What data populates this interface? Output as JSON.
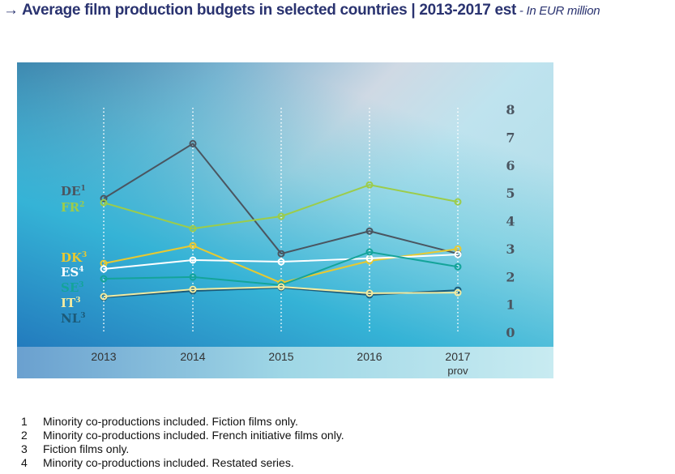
{
  "title": {
    "main": "→ Average film production budgets in selected countries | 2013-2017 est",
    "sub": " - In EUR million"
  },
  "chart_data": {
    "type": "line",
    "title": "Average film production budgets in selected countries | 2013-2017 est",
    "ylabel": "In EUR million",
    "categories": [
      "2013",
      "2014",
      "2015",
      "2016",
      "2017"
    ],
    "category_sublabels": [
      "",
      "",
      "",
      "",
      "prov"
    ],
    "ylim": [
      0,
      8
    ],
    "yticks": [
      0,
      1,
      2,
      3,
      4,
      5,
      6,
      7,
      8
    ],
    "grid": "vertical dotted",
    "legend": "left",
    "series": [
      {
        "name": "DE",
        "note": "1",
        "color": "#4a5560",
        "values": [
          4.8,
          6.77,
          2.82,
          3.63,
          2.82
        ]
      },
      {
        "name": "FR",
        "note": "2",
        "color": "#9ccc4a",
        "values": [
          4.65,
          3.72,
          4.16,
          5.29,
          4.68
        ]
      },
      {
        "name": "DK",
        "note": "3",
        "color": "#e8c930",
        "values": [
          2.47,
          3.11,
          1.77,
          2.56,
          2.99
        ]
      },
      {
        "name": "ES",
        "note": "4",
        "color": "#ffffff",
        "values": [
          2.27,
          2.59,
          2.53,
          2.65,
          2.79
        ]
      },
      {
        "name": "SE",
        "note": "3",
        "color": "#14a49a",
        "values": [
          1.92,
          1.98,
          1.69,
          2.88,
          2.35
        ]
      },
      {
        "name": "NL",
        "note": "3",
        "color": "#1c5a78",
        "values": [
          1.25,
          1.48,
          1.6,
          1.34,
          1.51
        ]
      },
      {
        "name": "IT",
        "note": "3",
        "color": "#f3eba0",
        "values": [
          1.28,
          1.54,
          1.63,
          1.4,
          1.42
        ]
      }
    ],
    "legend_order": [
      "DE",
      "FR",
      "DK",
      "ES",
      "SE",
      "IT",
      "NL"
    ]
  },
  "notes": [
    {
      "n": "1",
      "text": "Minority co-productions included. Fiction films only."
    },
    {
      "n": "2",
      "text": "Minority co-productions included. French initiative films only."
    },
    {
      "n": "3",
      "text": "Fiction films only."
    },
    {
      "n": "4",
      "text": "Minority co-productions included. Restated series."
    }
  ]
}
